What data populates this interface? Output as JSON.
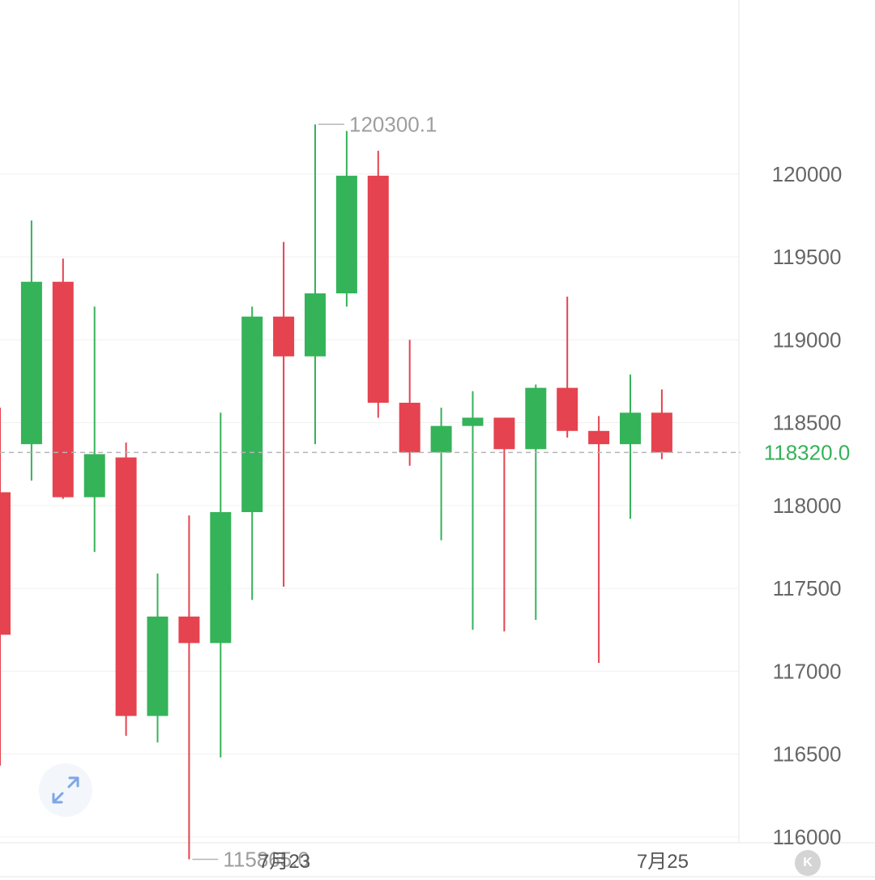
{
  "chart_data": {
    "type": "candlestick",
    "y_range": [
      115750,
      120620
    ],
    "y_ticks": [
      120000,
      119500,
      119000,
      118500,
      118000,
      117500,
      117000,
      116500,
      116000
    ],
    "y_tick_labels": [
      "120000",
      "119500",
      "119000",
      "118500",
      "118000",
      "117500",
      "117000",
      "116500",
      "116000"
    ],
    "x_labels": [
      {
        "index": 9,
        "label": "7月23"
      },
      {
        "index": 21,
        "label": "7月25"
      }
    ],
    "colors": {
      "up": "#35b359",
      "down": "#e5434f",
      "current": "#35b359",
      "grid": "#f0f0f0"
    },
    "current_price": 118320.0,
    "current_price_label": "118320.0",
    "high_annotation": {
      "value": 120300.1,
      "label": "120300.1",
      "index": 10
    },
    "low_annotation": {
      "value": 115865.0,
      "label": "115865.0",
      "index": 6
    },
    "candles": [
      {
        "open": 118080,
        "high": 118590,
        "low": 116430,
        "close": 117220
      },
      {
        "open": 118370,
        "high": 119720,
        "low": 118150,
        "close": 119350
      },
      {
        "open": 119350,
        "high": 119490,
        "low": 118040,
        "close": 118050
      },
      {
        "open": 118050,
        "high": 119200,
        "low": 117720,
        "close": 118310
      },
      {
        "open": 118290,
        "high": 118380,
        "low": 116610,
        "close": 116730
      },
      {
        "open": 116730,
        "high": 117590,
        "low": 116570,
        "close": 117330
      },
      {
        "open": 117330,
        "high": 117940,
        "low": 115865,
        "close": 117170
      },
      {
        "open": 117170,
        "high": 118560,
        "low": 116480,
        "close": 117960
      },
      {
        "open": 117960,
        "high": 119200,
        "low": 117430,
        "close": 119140
      },
      {
        "open": 119140,
        "high": 119590,
        "low": 117510,
        "close": 118900
      },
      {
        "open": 118900,
        "high": 120300,
        "low": 118370,
        "close": 119280
      },
      {
        "open": 119280,
        "high": 120260,
        "low": 119200,
        "close": 119990
      },
      {
        "open": 119990,
        "high": 120140,
        "low": 118530,
        "close": 118620
      },
      {
        "open": 118620,
        "high": 119000,
        "low": 118240,
        "close": 118320
      },
      {
        "open": 118320,
        "high": 118590,
        "low": 117790,
        "close": 118480
      },
      {
        "open": 118480,
        "high": 118690,
        "low": 117250,
        "close": 118530
      },
      {
        "open": 118530,
        "high": 118530,
        "low": 117240,
        "close": 118340
      },
      {
        "open": 118340,
        "high": 118730,
        "low": 117310,
        "close": 118710
      },
      {
        "open": 118710,
        "high": 119260,
        "low": 118410,
        "close": 118450
      },
      {
        "open": 118450,
        "high": 118540,
        "low": 117050,
        "close": 118370
      },
      {
        "open": 118370,
        "high": 118790,
        "low": 117920,
        "close": 118560
      },
      {
        "open": 118560,
        "high": 118700,
        "low": 118280,
        "close": 118320
      }
    ]
  },
  "controls": {
    "expand_icon": "expand-arrows-icon",
    "k_button_label": "K"
  }
}
